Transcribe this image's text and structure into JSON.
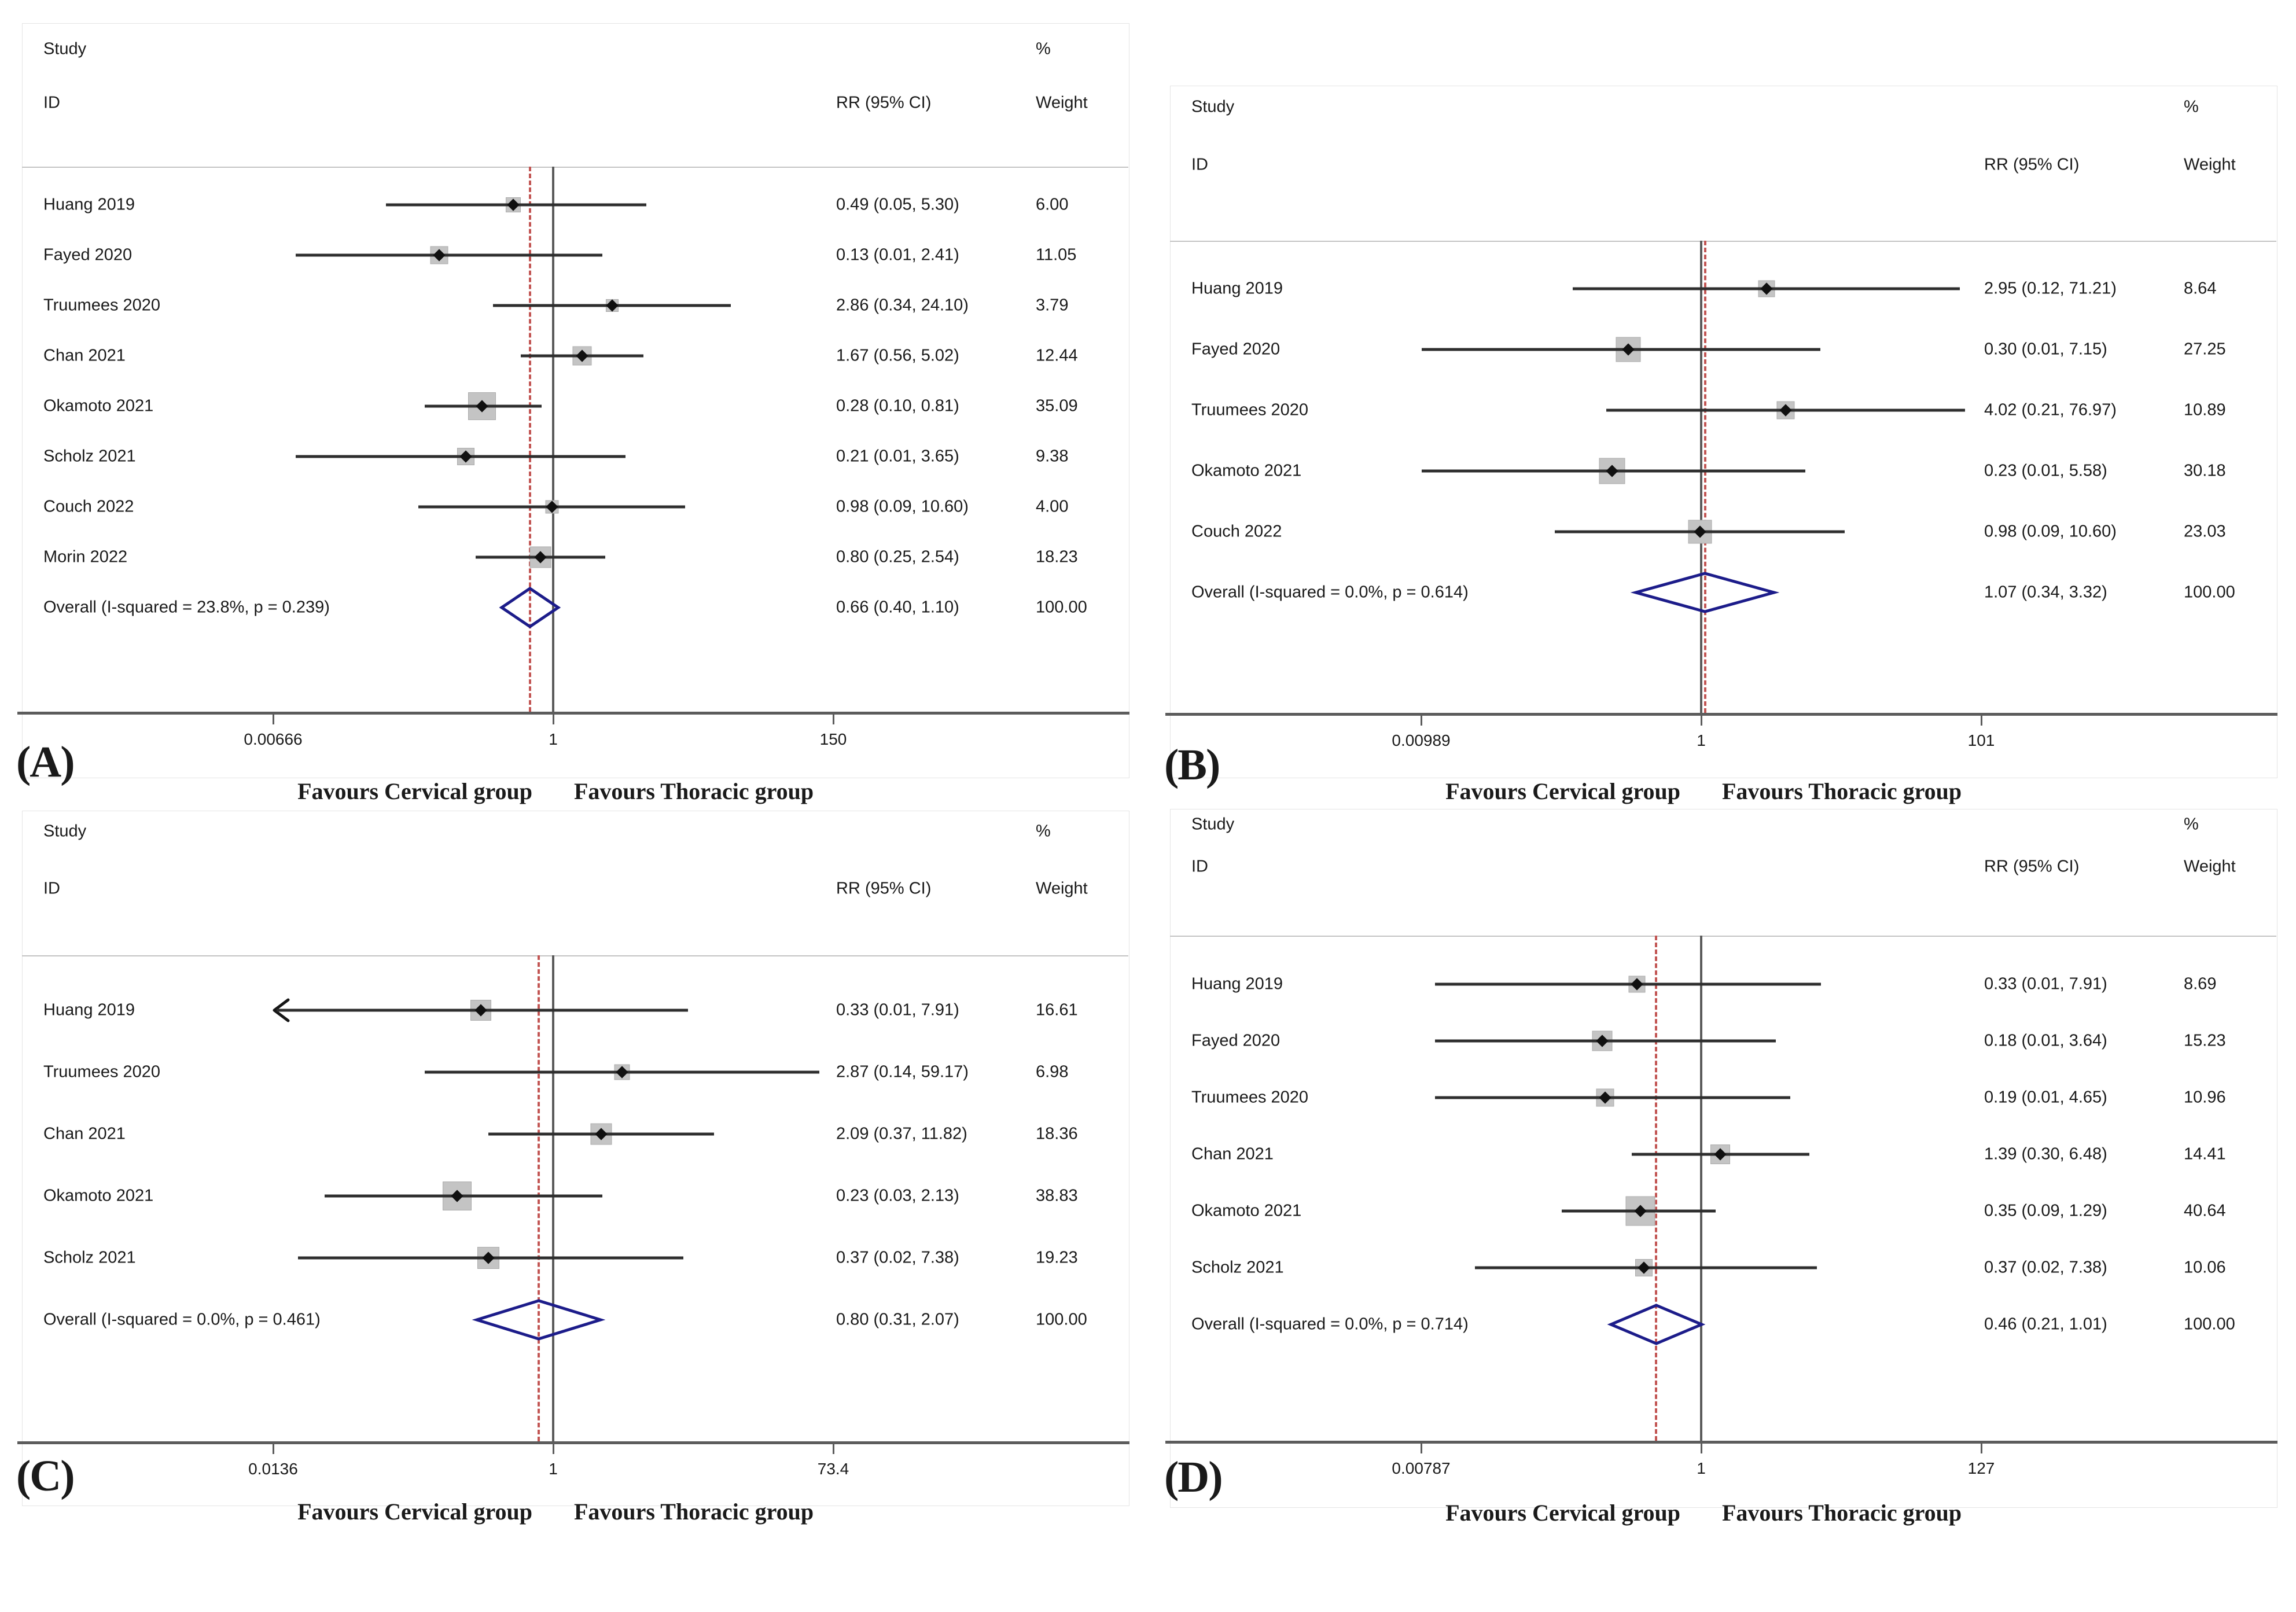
{
  "figure": {
    "measure_label": "RR (95% CI)",
    "colors": {
      "diamond_outline": "#1c1c8a",
      "overall_dashed_line": "#c25553",
      "null_line": "#5b5b5b",
      "axis_line": "#5c5c5c",
      "ci_line": "#2e2e2e",
      "weight_box_fill": "#c4c4c4"
    },
    "header": {
      "study": "Study",
      "id": "ID",
      "rr": "RR (95% CI)",
      "pct": "%",
      "weight": "Weight"
    },
    "favours_left": "Favours Cervical group",
    "favours_right": "Favours Thoracic group"
  },
  "chart_data": {
    "type": "forest",
    "scale": "log10",
    "effect_measure": "RR",
    "panels": [
      {
        "id": "A",
        "letter": "(A)",
        "axis": {
          "min": 0.00666,
          "max": 150,
          "ticks": [
            "0.00666",
            "1",
            "150"
          ]
        },
        "studies": [
          {
            "name": "Huang 2019",
            "rr": 0.49,
            "lo": 0.05,
            "hi": 5.3,
            "rr_text": "0.49 (0.05, 5.30)",
            "weight": 6.0,
            "weight_text": "6.00"
          },
          {
            "name": "Fayed 2020",
            "rr": 0.13,
            "lo": 0.01,
            "hi": 2.41,
            "rr_text": "0.13 (0.01, 2.41)",
            "weight": 11.05,
            "weight_text": "11.05"
          },
          {
            "name": "Truumees 2020",
            "rr": 2.86,
            "lo": 0.34,
            "hi": 24.1,
            "rr_text": "2.86 (0.34, 24.10)",
            "weight": 3.79,
            "weight_text": "3.79"
          },
          {
            "name": "Chan 2021",
            "rr": 1.67,
            "lo": 0.56,
            "hi": 5.02,
            "rr_text": "1.67 (0.56, 5.02)",
            "weight": 12.44,
            "weight_text": "12.44"
          },
          {
            "name": "Okamoto 2021",
            "rr": 0.28,
            "lo": 0.1,
            "hi": 0.81,
            "rr_text": "0.28 (0.10, 0.81)",
            "weight": 35.09,
            "weight_text": "35.09"
          },
          {
            "name": "Scholz 2021",
            "rr": 0.21,
            "lo": 0.01,
            "hi": 3.65,
            "rr_text": "0.21 (0.01, 3.65)",
            "weight": 9.38,
            "weight_text": "9.38"
          },
          {
            "name": "Couch 2022",
            "rr": 0.98,
            "lo": 0.09,
            "hi": 10.6,
            "rr_text": "0.98 (0.09, 10.60)",
            "weight": 4.0,
            "weight_text": "4.00"
          },
          {
            "name": "Morin 2022",
            "rr": 0.8,
            "lo": 0.25,
            "hi": 2.54,
            "rr_text": "0.80 (0.25, 2.54)",
            "weight": 18.23,
            "weight_text": "18.23"
          }
        ],
        "overall": {
          "label": "Overall  (I-squared = 23.8%, p = 0.239)",
          "rr": 0.66,
          "lo": 0.4,
          "hi": 1.1,
          "rr_text": "0.66 (0.40, 1.10)",
          "weight_text": "100.00"
        }
      },
      {
        "id": "B",
        "letter": "(B)",
        "axis": {
          "min": 0.00989,
          "max": 101,
          "ticks": [
            "0.00989",
            "1",
            "101"
          ]
        },
        "studies": [
          {
            "name": "Huang 2019",
            "rr": 2.95,
            "lo": 0.12,
            "hi": 71.21,
            "rr_text": "2.95 (0.12, 71.21)",
            "weight": 8.64,
            "weight_text": "8.64"
          },
          {
            "name": "Fayed 2020",
            "rr": 0.3,
            "lo": 0.01,
            "hi": 7.15,
            "rr_text": "0.30 (0.01, 7.15)",
            "weight": 27.25,
            "weight_text": "27.25"
          },
          {
            "name": "Truumees 2020",
            "rr": 4.02,
            "lo": 0.21,
            "hi": 76.97,
            "rr_text": "4.02 (0.21, 76.97)",
            "weight": 10.89,
            "weight_text": "10.89"
          },
          {
            "name": "Okamoto 2021",
            "rr": 0.23,
            "lo": 0.01,
            "hi": 5.58,
            "rr_text": "0.23 (0.01, 5.58)",
            "weight": 30.18,
            "weight_text": "30.18"
          },
          {
            "name": "Couch 2022",
            "rr": 0.98,
            "lo": 0.09,
            "hi": 10.6,
            "rr_text": "0.98 (0.09, 10.60)",
            "weight": 23.03,
            "weight_text": "23.03"
          }
        ],
        "overall": {
          "label": "Overall  (I-squared = 0.0%, p = 0.614)",
          "rr": 1.07,
          "lo": 0.34,
          "hi": 3.32,
          "rr_text": "1.07 (0.34, 3.32)",
          "weight_text": "100.00"
        }
      },
      {
        "id": "C",
        "letter": "(C)",
        "axis": {
          "min": 0.0136,
          "max": 73.4,
          "ticks": [
            "0.0136",
            "1",
            "73.4"
          ]
        },
        "studies": [
          {
            "name": "Huang 2019",
            "rr": 0.33,
            "lo": 0.01,
            "hi": 7.91,
            "rr_text": "0.33 (0.01, 7.91)",
            "weight": 16.61,
            "weight_text": "16.61",
            "clamp_left": true
          },
          {
            "name": "Truumees 2020",
            "rr": 2.87,
            "lo": 0.14,
            "hi": 59.17,
            "rr_text": "2.87 (0.14, 59.17)",
            "weight": 6.98,
            "weight_text": "6.98"
          },
          {
            "name": "Chan 2021",
            "rr": 2.09,
            "lo": 0.37,
            "hi": 11.82,
            "rr_text": "2.09 (0.37, 11.82)",
            "weight": 18.36,
            "weight_text": "18.36"
          },
          {
            "name": "Okamoto 2021",
            "rr": 0.23,
            "lo": 0.03,
            "hi": 2.13,
            "rr_text": "0.23 (0.03, 2.13)",
            "weight": 38.83,
            "weight_text": "38.83"
          },
          {
            "name": "Scholz 2021",
            "rr": 0.37,
            "lo": 0.02,
            "hi": 7.38,
            "rr_text": "0.37 (0.02, 7.38)",
            "weight": 19.23,
            "weight_text": "19.23"
          }
        ],
        "overall": {
          "label": "Overall  (I-squared = 0.0%, p = 0.461)",
          "rr": 0.8,
          "lo": 0.31,
          "hi": 2.07,
          "rr_text": "0.80 (0.31, 2.07)",
          "weight_text": "100.00"
        }
      },
      {
        "id": "D",
        "letter": "(D)",
        "axis": {
          "min": 0.00787,
          "max": 127,
          "ticks": [
            "0.00787",
            "1",
            "127"
          ]
        },
        "studies": [
          {
            "name": "Huang 2019",
            "rr": 0.33,
            "lo": 0.01,
            "hi": 7.91,
            "rr_text": "0.33 (0.01, 7.91)",
            "weight": 8.69,
            "weight_text": "8.69"
          },
          {
            "name": "Fayed 2020",
            "rr": 0.18,
            "lo": 0.01,
            "hi": 3.64,
            "rr_text": "0.18 (0.01, 3.64)",
            "weight": 15.23,
            "weight_text": "15.23"
          },
          {
            "name": "Truumees 2020",
            "rr": 0.19,
            "lo": 0.01,
            "hi": 4.65,
            "rr_text": "0.19 (0.01, 4.65)",
            "weight": 10.96,
            "weight_text": "10.96"
          },
          {
            "name": "Chan 2021",
            "rr": 1.39,
            "lo": 0.3,
            "hi": 6.48,
            "rr_text": "1.39 (0.30, 6.48)",
            "weight": 14.41,
            "weight_text": "14.41"
          },
          {
            "name": "Okamoto 2021",
            "rr": 0.35,
            "lo": 0.09,
            "hi": 1.29,
            "rr_text": "0.35 (0.09, 1.29)",
            "weight": 40.64,
            "weight_text": "40.64"
          },
          {
            "name": "Scholz 2021",
            "rr": 0.37,
            "lo": 0.02,
            "hi": 7.38,
            "rr_text": "0.37 (0.02, 7.38)",
            "weight": 10.06,
            "weight_text": "10.06"
          }
        ],
        "overall": {
          "label": "Overall  (I-squared = 0.0%, p = 0.714)",
          "rr": 0.46,
          "lo": 0.21,
          "hi": 1.01,
          "rr_text": "0.46 (0.21, 1.01)",
          "weight_text": "100.00"
        }
      }
    ]
  }
}
